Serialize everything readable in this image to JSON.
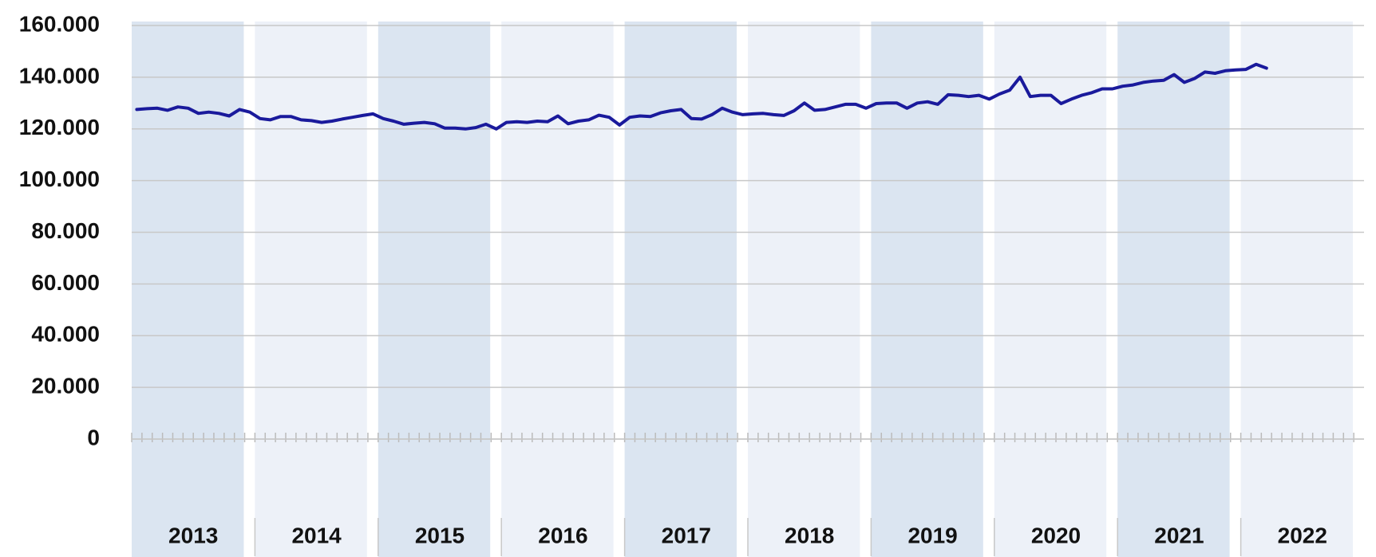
{
  "chart_data": {
    "type": "line",
    "categories": [
      null,
      null,
      null,
      null,
      null,
      null,
      "2013",
      null,
      null,
      null,
      null,
      null,
      null,
      null,
      null,
      null,
      null,
      null,
      "2014",
      null,
      null,
      null,
      null,
      null,
      null,
      null,
      null,
      null,
      null,
      null,
      "2015",
      null,
      null,
      null,
      null,
      null,
      null,
      null,
      null,
      null,
      null,
      null,
      "2016",
      null,
      null,
      null,
      null,
      null,
      null,
      null,
      null,
      null,
      null,
      null,
      "2017",
      null,
      null,
      null,
      null,
      null,
      null,
      null,
      null,
      null,
      null,
      null,
      "2018",
      null,
      null,
      null,
      null,
      null,
      null,
      null,
      null,
      null,
      null,
      null,
      "2019",
      null,
      null,
      null,
      null,
      null,
      null,
      null,
      null,
      null,
      null,
      null,
      "2020",
      null,
      null,
      null,
      null,
      null,
      null,
      null,
      null,
      null,
      null,
      null,
      "2021",
      null,
      null,
      null,
      null,
      null,
      null,
      null,
      null,
      null,
      null,
      null,
      "2022",
      null,
      null,
      null,
      null,
      null
    ],
    "values": [
      127500,
      127800,
      128000,
      127200,
      128500,
      128000,
      126000,
      126500,
      126000,
      125000,
      127500,
      126500,
      124000,
      123500,
      124800,
      124800,
      123500,
      123200,
      122500,
      123000,
      123800,
      124500,
      125200,
      125800,
      124000,
      123000,
      121800,
      122200,
      122500,
      122000,
      120300,
      120300,
      120000,
      120500,
      121800,
      120000,
      122500,
      122800,
      122500,
      123000,
      122800,
      125000,
      122000,
      123000,
      123500,
      125300,
      124500,
      121500,
      124500,
      125000,
      124800,
      126200,
      127000,
      127500,
      124000,
      123800,
      125500,
      128000,
      126500,
      125500,
      125800,
      126000,
      125500,
      125200,
      127000,
      130000,
      127200,
      127500,
      128500,
      129500,
      129500,
      128000,
      129800,
      130000,
      130000,
      128000,
      130000,
      130500,
      129500,
      133200,
      133000,
      132500,
      133000,
      131500,
      133500,
      135000,
      140000,
      132500,
      133000,
      133000,
      129800,
      131500,
      133000,
      134000,
      135500,
      135500,
      136500,
      137000,
      138000,
      138500,
      138800,
      141000,
      138000,
      139500,
      142000,
      141500,
      142500,
      142800,
      143000,
      145000,
      143500,
      null,
      null,
      null,
      null,
      null,
      null,
      null,
      null,
      null
    ],
    "color": "#1a1a9c",
    "ylim": [
      0,
      160000
    ],
    "yticks": [
      0,
      {
        "value": 20000,
        "label": "20.000"
      },
      {
        "value": 40000,
        "label": "40.000"
      },
      {
        "value": 60000,
        "label": "60.000"
      },
      {
        "value": 80000,
        "label": "80.000"
      },
      {
        "value": 100000,
        "label": "100.000"
      },
      {
        "value": 120000,
        "label": "120.000"
      },
      {
        "value": 140000,
        "label": "140.000"
      },
      {
        "value": 160000,
        "label": "160.000"
      }
    ],
    "grid": true
  }
}
